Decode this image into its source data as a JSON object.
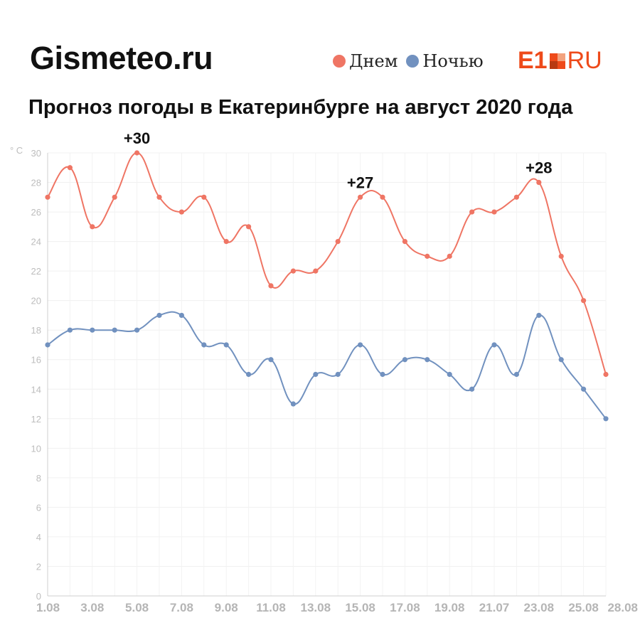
{
  "header": {
    "brand": "Gismeteo.ru",
    "source_logo": "E1 RU"
  },
  "legend": [
    {
      "label": "Днем",
      "color": "#ef7564"
    },
    {
      "label": "Ночью",
      "color": "#7191bf"
    }
  ],
  "chart_data": {
    "type": "line",
    "title": "Прогноз погоды в Екатеринбурге на август 2020 года",
    "ylabel": "° C",
    "ylim": [
      0,
      30
    ],
    "yticks": [
      0,
      2,
      4,
      6,
      8,
      10,
      12,
      14,
      16,
      18,
      20,
      22,
      24,
      26,
      28,
      30
    ],
    "x_tick_labels": [
      "1.08",
      "3.08",
      "5.08",
      "7.08",
      "9.08",
      "11.08",
      "13.08",
      "15.08",
      "17.08",
      "19.08",
      "21.07",
      "23.08",
      "25.08",
      "28.08"
    ],
    "series": [
      {
        "name": "Днем",
        "color": "#ef7564",
        "values": [
          27,
          29,
          25,
          27,
          30,
          27,
          26,
          27,
          24,
          25,
          21,
          22,
          22,
          24,
          27,
          27,
          24,
          23,
          23,
          26,
          26,
          27,
          28,
          23,
          20,
          15
        ]
      },
      {
        "name": "Ночью",
        "color": "#7191bf",
        "values": [
          17,
          18,
          18,
          18,
          18,
          19,
          19,
          17,
          17,
          15,
          16,
          13,
          15,
          15,
          17,
          15,
          16,
          16,
          15,
          14,
          17,
          15,
          19,
          16,
          14,
          12
        ]
      }
    ],
    "annotations": [
      {
        "text": "+30",
        "point_index": 4,
        "value": 30
      },
      {
        "text": "+27",
        "point_index": 14,
        "value": 27
      },
      {
        "text": "+28",
        "point_index": 22,
        "value": 28
      }
    ],
    "grid": true,
    "legend_position": "top-right"
  }
}
